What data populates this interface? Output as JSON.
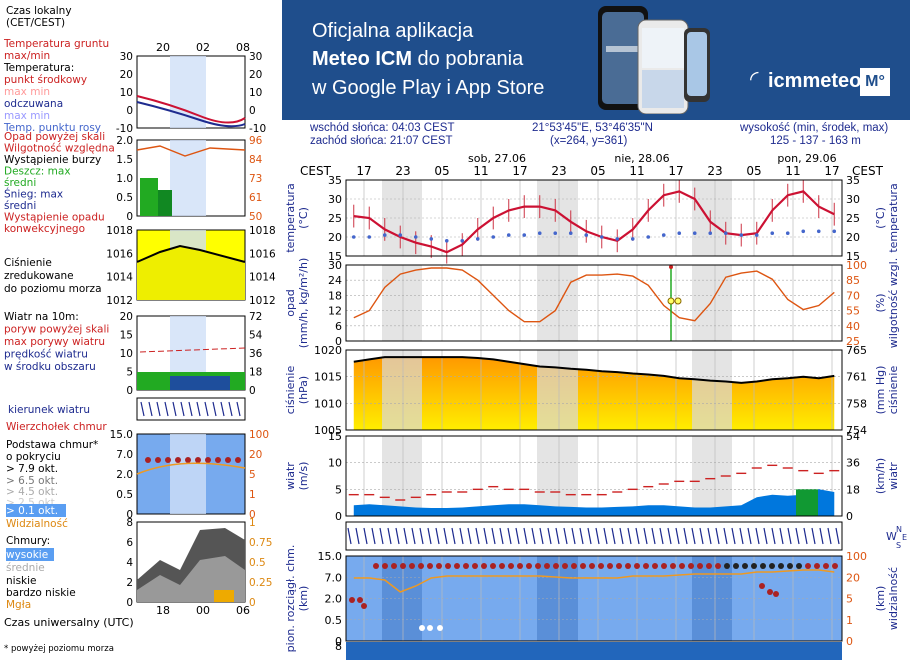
{
  "banner": {
    "line1": "Oficjalna aplikacja",
    "line2_strong": "Meteo ICM",
    "line2_rest": " do pobrania",
    "line3": "w Google Play i App Store",
    "logo_text": "icmmeteo",
    "logo_badge": "M°",
    "bg_color": "#1f4e8c"
  },
  "info": {
    "sunrise": "wschód słońca: 04:03 CEST",
    "sunset": "zachód słońca: 21:07 CEST",
    "coords": "21°53'45\"E, 53°46'35\"N",
    "grid": "(x=264,  y=361)",
    "height_label": "wysokość (min, środek, max)",
    "height_values": "125 - 137 - 163 m"
  },
  "legend": {
    "local_time": "Czas lokalny\n(CET/CEST)",
    "local_ticks": [
      "20",
      "02",
      "08"
    ],
    "temp_lines": [
      "Temperatura gruntu",
      "max/min",
      "Temperatura:",
      "punkt środkowy",
      "max min",
      "odczuwana",
      "max min",
      "Temp. punktu rosy"
    ],
    "temp_left": [
      "30",
      "20",
      "10",
      "0",
      "-10"
    ],
    "temp_right": [
      "30",
      "20",
      "10",
      "0",
      "-10"
    ],
    "precip_lines": [
      "Opad powyżej skali",
      "Wilgotność względna",
      "Wystąpienie burzy",
      "Deszcz: max",
      "średni",
      "Śnieg:  max",
      "średni",
      "Wystąpienie opadu",
      "konwekcyjnego"
    ],
    "precip_left": [
      "2.0",
      "1.5",
      "1.0",
      "0.5",
      "0"
    ],
    "precip_right": [
      "96",
      "84",
      "73",
      "61",
      "50"
    ],
    "pressure_lines": [
      "Ciśnienie",
      "zredukowane",
      "do poziomu morza"
    ],
    "pressure_left": [
      "1018",
      "1016",
      "1014",
      "1012"
    ],
    "pressure_right": [
      "1018",
      "1016",
      "1014",
      "1012"
    ],
    "wind_lines": [
      "Wiatr na 10m:",
      "poryw powyżej skali",
      "max porywy wiatru",
      "prędkość wiatru",
      "w środku obszaru"
    ],
    "wind_left": [
      "20",
      "15",
      "10",
      "5",
      "0"
    ],
    "wind_right": [
      "72",
      "54",
      "36",
      "18",
      "0"
    ],
    "direction_label": "kierunek wiatru",
    "cloud_lines": [
      "Wierzchołek chmur",
      "Podstawa chmur*",
      "o pokryciu",
      "> 7.9 okt.",
      "> 6.5 okt.",
      "> 4.5 okt.",
      "> 2.5 okt.",
      "> 0.1 okt.",
      "Widzialność"
    ],
    "cloud_left": [
      "15.0",
      "7.0",
      "2.0",
      "0.5",
      "0"
    ],
    "cloud_right": [
      "100",
      "20",
      "5",
      "1",
      "0"
    ],
    "cover_lines": [
      "Chmury:",
      "wysokie",
      "średnie",
      "niskie",
      "bardzo niskie",
      "Mgła"
    ],
    "cover_left": [
      "8",
      "6",
      "4",
      "2",
      "0"
    ],
    "cover_right": [
      "1",
      "0.75",
      "0.5",
      "0.25",
      "0"
    ],
    "utc_label": "Czas uniwersalny (UTC)",
    "utc_ticks": [
      "18",
      "00",
      "06"
    ],
    "footnote": "* powyżej poziomu morza"
  },
  "chart_data": {
    "type": "line",
    "time_axis": {
      "timezone_label": "CEST",
      "hour_ticks": [
        "17",
        "23",
        "05",
        "11",
        "17",
        "23",
        "05",
        "11",
        "17",
        "23",
        "05",
        "11",
        "17"
      ],
      "day_labels": [
        "sob, 27.06",
        "nie, 28.06",
        "pon, 29.06"
      ]
    },
    "panels": [
      {
        "name": "temperature",
        "ylabel_left": "temperatura\n(°C)",
        "ylabel_right": "(°C)\ntemperatura",
        "ylim": [
          15,
          35
        ],
        "ticks": [
          "35",
          "30",
          "25",
          "20",
          "15"
        ],
        "series": [
          {
            "name": "punkt środkowy",
            "color": "#cc1133",
            "values": [
              25.5,
              25,
              22,
              20,
              18.5,
              17.5,
              16,
              18,
              22,
              25,
              27,
              28,
              28,
              27,
              24,
              21.5,
              20,
              19,
              22,
              27,
              31,
              32,
              30,
              24,
              21,
              20.5,
              21,
              27,
              31,
              32,
              28,
              26
            ]
          },
          {
            "name": "Temp. punktu rosy",
            "color": "#4466cc",
            "values": [
              20,
              20,
              20.5,
              20.5,
              20,
              19.5,
              19,
              19,
              19.5,
              20,
              20.5,
              20.5,
              21,
              21,
              21,
              20.5,
              20,
              19.5,
              19.5,
              20,
              20.5,
              21,
              21,
              21,
              21,
              20.5,
              20.5,
              21,
              21,
              21.5,
              21.5,
              21.5
            ]
          }
        ]
      },
      {
        "name": "precipitation",
        "ylabel_left": "opad\n(mm/h, kg/m²/h)",
        "ylabel_right": "(%)\nwilgotność wzgl.",
        "ylim": [
          0,
          30
        ],
        "ticks": [
          "30",
          "24",
          "18",
          "12",
          "6",
          "0"
        ],
        "ticks_right": [
          "100",
          "85",
          "70",
          "55",
          "40",
          "25"
        ],
        "series": [
          {
            "name": "Wilgotność względna",
            "color": "#dd5511",
            "values": [
              48,
              55,
              78,
              91,
              95,
              97,
              97,
              95,
              85,
              70,
              55,
              44,
              44,
              55,
              83,
              90,
              90,
              91,
              89,
              80,
              60,
              48,
              45,
              62,
              88,
              92,
              94,
              86,
              66,
              56,
              60,
              73
            ]
          }
        ]
      },
      {
        "name": "pressure",
        "ylabel_left": "ciśnienie\n(hPa)",
        "ylabel_right": "(mm Hg)\nciśnienie",
        "ylim": [
          1005,
          1022
        ],
        "ticks": [
          "1020",
          "1015",
          "1010",
          "1005"
        ],
        "ticks_right": [
          "765",
          "761",
          "758",
          "754"
        ],
        "series": [
          {
            "name": "Ciśnienie",
            "color": "#000000",
            "values": [
              1019.5,
              1020,
              1020.5,
              1020.5,
              1020.5,
              1020.5,
              1020.5,
              1020.5,
              1020.3,
              1020,
              1019.5,
              1019,
              1018.5,
              1018.3,
              1018,
              1017.8,
              1017.5,
              1017.3,
              1017,
              1016.8,
              1016.5,
              1016,
              1015.8,
              1015.5,
              1015.3,
              1015,
              1015.3,
              1015.8,
              1016,
              1016.3,
              1016,
              1016.5
            ]
          }
        ]
      },
      {
        "name": "wind",
        "ylabel_left": "wiatr\n(m/s)",
        "ylabel_right": "(km/h)\nwiatr",
        "ylim": [
          0,
          15
        ],
        "ticks": [
          "15",
          "10",
          "5",
          "0"
        ],
        "ticks_right": [
          "54",
          "36",
          "18",
          "0"
        ],
        "series": [
          {
            "name": "prędkość wiatru",
            "color": "#0066dd",
            "values": [
              2,
              2.2,
              2,
              1.8,
              1.6,
              1.5,
              1.5,
              1.6,
              1.8,
              2,
              2.2,
              2.2,
              2,
              1.8,
              1.7,
              1.6,
              1.6,
              1.7,
              1.8,
              2,
              2,
              1.8,
              1.6,
              1.6,
              1.8,
              2,
              3.5,
              4,
              3.8,
              4,
              5,
              4.5
            ]
          },
          {
            "name": "max porywy wiatru",
            "color": "#cc2222",
            "values": [
              4,
              4,
              3.5,
              3,
              3.5,
              4,
              4.5,
              4.5,
              5,
              5.5,
              5,
              5,
              4.5,
              4.5,
              4,
              4,
              4,
              4.5,
              5,
              5.5,
              6,
              6.5,
              6.5,
              7,
              7.5,
              8,
              9,
              9.5,
              9,
              8.5,
              8,
              8.5
            ]
          }
        ]
      },
      {
        "name": "clouds",
        "ylabel_left": "pion. rozciągł. chm.\n(km)",
        "ylabel_right": "(km)\nwidzialność",
        "ticks": [
          "15.0",
          "7.0",
          "2.0",
          "0.5",
          "0"
        ],
        "ticks_right": [
          "100",
          "20",
          "5",
          "1",
          "0"
        ]
      }
    ]
  },
  "colors": {
    "header_blue": "#1e2b8f",
    "temp_red": "#cc1133",
    "dew_blue": "#4466cc",
    "humidity_orange": "#dd5511",
    "pressure_fill_top": "#ff9900",
    "pressure_fill_bottom": "#ffee00",
    "wind_fill": "#0077dd",
    "cloud_bg": "#77aaee"
  }
}
